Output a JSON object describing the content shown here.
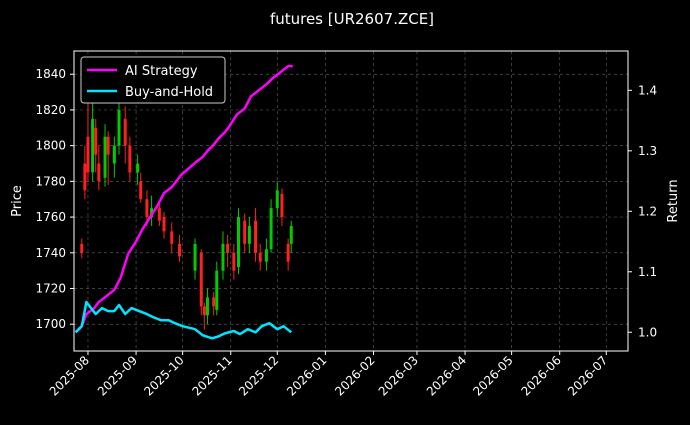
{
  "chart_data": {
    "type": "line",
    "title": "futures [UR2607.ZCE]",
    "xlabel": "",
    "ylabel": "Price",
    "y2label": "Return",
    "ylim": [
      1685,
      1853
    ],
    "y2lim": [
      0.969,
      1.465
    ],
    "xlim": [
      "2025-07-23",
      "2026-07-15"
    ],
    "yticks": [
      1700,
      1720,
      1740,
      1760,
      1780,
      1800,
      1820,
      1840
    ],
    "y2ticks": [
      1.0,
      1.1,
      1.2,
      1.3,
      1.4
    ],
    "xticks": [
      "2025-08",
      "2025-09",
      "2025-10",
      "2025-11",
      "2025-12",
      "2026-01",
      "2026-02",
      "2026-03",
      "2026-04",
      "2026-05",
      "2026-06",
      "2026-07"
    ],
    "grid": true,
    "legend_position": "top-left",
    "colors": {
      "background": "#000000",
      "up": "#00cc00",
      "down": "#ff2020",
      "ai": "#ff00ff",
      "bh": "#00e5ff",
      "text": "#ffffff",
      "grid": "#555555"
    },
    "series": [
      {
        "name": "AI Strategy",
        "axis": "right",
        "x": [
          "2025-07-24",
          "2025-07-28",
          "2025-07-31",
          "2025-08-05",
          "2025-08-08",
          "2025-08-13",
          "2025-08-18",
          "2025-08-22",
          "2025-08-27",
          "2025-09-01",
          "2025-09-05",
          "2025-09-10",
          "2025-09-15",
          "2025-09-19",
          "2025-09-24",
          "2025-09-30",
          "2025-10-09",
          "2025-10-14",
          "2025-10-17",
          "2025-10-21",
          "2025-10-24",
          "2025-10-28",
          "2025-10-31",
          "2025-11-05",
          "2025-11-10",
          "2025-11-14",
          "2025-11-19",
          "2025-11-24",
          "2025-11-28",
          "2025-12-03",
          "2025-12-08",
          "2025-12-11"
        ],
        "values": [
          1.0,
          1.01,
          1.03,
          1.04,
          1.05,
          1.06,
          1.07,
          1.09,
          1.13,
          1.15,
          1.17,
          1.19,
          1.21,
          1.23,
          1.24,
          1.26,
          1.28,
          1.29,
          1.3,
          1.31,
          1.32,
          1.33,
          1.34,
          1.36,
          1.37,
          1.39,
          1.4,
          1.41,
          1.42,
          1.43,
          1.44,
          1.44
        ]
      },
      {
        "name": "Buy-and-Hold",
        "axis": "right",
        "x": [
          "2025-07-24",
          "2025-07-28",
          "2025-07-31",
          "2025-08-03",
          "2025-08-06",
          "2025-08-10",
          "2025-08-14",
          "2025-08-18",
          "2025-08-21",
          "2025-08-25",
          "2025-08-29",
          "2025-09-03",
          "2025-09-08",
          "2025-09-12",
          "2025-09-17",
          "2025-09-22",
          "2025-09-26",
          "2025-10-01",
          "2025-10-09",
          "2025-10-14",
          "2025-10-20",
          "2025-10-24",
          "2025-10-28",
          "2025-11-03",
          "2025-11-07",
          "2025-11-12",
          "2025-11-17",
          "2025-11-21",
          "2025-11-26",
          "2025-12-01",
          "2025-12-05",
          "2025-12-10"
        ],
        "values": [
          1.0,
          1.01,
          1.05,
          1.04,
          1.03,
          1.04,
          1.035,
          1.035,
          1.045,
          1.03,
          1.04,
          1.035,
          1.03,
          1.025,
          1.02,
          1.02,
          1.015,
          1.01,
          1.005,
          0.995,
          0.99,
          0.993,
          0.998,
          1.002,
          0.997,
          1.005,
          1.0,
          1.01,
          1.015,
          1.005,
          1.01,
          1.0
        ]
      }
    ],
    "candles": [
      {
        "x": "2025-07-28",
        "o": 1745,
        "c": 1740,
        "h": 1748,
        "l": 1737
      },
      {
        "x": "2025-07-30",
        "o": 1790,
        "c": 1775,
        "h": 1800,
        "l": 1770
      },
      {
        "x": "2025-08-01",
        "o": 1805,
        "c": 1785,
        "h": 1830,
        "l": 1780
      },
      {
        "x": "2025-08-04",
        "o": 1785,
        "c": 1815,
        "h": 1825,
        "l": 1780
      },
      {
        "x": "2025-08-06",
        "o": 1810,
        "c": 1795,
        "h": 1815,
        "l": 1785
      },
      {
        "x": "2025-08-08",
        "o": 1790,
        "c": 1780,
        "h": 1800,
        "l": 1775
      },
      {
        "x": "2025-08-12",
        "o": 1782,
        "c": 1805,
        "h": 1812,
        "l": 1777
      },
      {
        "x": "2025-08-14",
        "o": 1805,
        "c": 1795,
        "h": 1808,
        "l": 1778
      },
      {
        "x": "2025-08-18",
        "o": 1790,
        "c": 1800,
        "h": 1805,
        "l": 1782
      },
      {
        "x": "2025-08-21",
        "o": 1800,
        "c": 1820,
        "h": 1825,
        "l": 1795
      },
      {
        "x": "2025-08-25",
        "o": 1815,
        "c": 1800,
        "h": 1822,
        "l": 1790
      },
      {
        "x": "2025-08-28",
        "o": 1800,
        "c": 1785,
        "h": 1805,
        "l": 1780
      },
      {
        "x": "2025-09-02",
        "o": 1785,
        "c": 1790,
        "h": 1795,
        "l": 1778
      },
      {
        "x": "2025-09-04",
        "o": 1780,
        "c": 1770,
        "h": 1785,
        "l": 1768
      },
      {
        "x": "2025-09-08",
        "o": 1770,
        "c": 1760,
        "h": 1775,
        "l": 1755
      },
      {
        "x": "2025-09-11",
        "o": 1760,
        "c": 1765,
        "h": 1772,
        "l": 1755
      },
      {
        "x": "2025-09-16",
        "o": 1765,
        "c": 1758,
        "h": 1768,
        "l": 1755
      },
      {
        "x": "2025-09-19",
        "o": 1760,
        "c": 1752,
        "h": 1763,
        "l": 1748
      },
      {
        "x": "2025-09-24",
        "o": 1752,
        "c": 1745,
        "h": 1757,
        "l": 1740
      },
      {
        "x": "2025-09-29",
        "o": 1745,
        "c": 1738,
        "h": 1750,
        "l": 1735
      },
      {
        "x": "2025-10-09",
        "o": 1730,
        "c": 1745,
        "h": 1748,
        "l": 1725
      },
      {
        "x": "2025-10-13",
        "o": 1740,
        "c": 1710,
        "h": 1742,
        "l": 1705
      },
      {
        "x": "2025-10-15",
        "o": 1710,
        "c": 1705,
        "h": 1712,
        "l": 1697
      },
      {
        "x": "2025-10-17",
        "o": 1705,
        "c": 1715,
        "h": 1720,
        "l": 1700
      },
      {
        "x": "2025-10-21",
        "o": 1715,
        "c": 1710,
        "h": 1718,
        "l": 1705
      },
      {
        "x": "2025-10-23",
        "o": 1708,
        "c": 1730,
        "h": 1735,
        "l": 1705
      },
      {
        "x": "2025-10-27",
        "o": 1730,
        "c": 1745,
        "h": 1752,
        "l": 1725
      },
      {
        "x": "2025-10-30",
        "o": 1745,
        "c": 1740,
        "h": 1750,
        "l": 1732
      },
      {
        "x": "2025-11-03",
        "o": 1740,
        "c": 1730,
        "h": 1745,
        "l": 1725
      },
      {
        "x": "2025-11-06",
        "o": 1732,
        "c": 1760,
        "h": 1765,
        "l": 1728
      },
      {
        "x": "2025-11-10",
        "o": 1758,
        "c": 1745,
        "h": 1762,
        "l": 1740
      },
      {
        "x": "2025-11-13",
        "o": 1745,
        "c": 1755,
        "h": 1760,
        "l": 1740
      },
      {
        "x": "2025-11-17",
        "o": 1758,
        "c": 1740,
        "h": 1765,
        "l": 1735
      },
      {
        "x": "2025-11-20",
        "o": 1740,
        "c": 1735,
        "h": 1745,
        "l": 1730
      },
      {
        "x": "2025-11-24",
        "o": 1735,
        "c": 1742,
        "h": 1748,
        "l": 1730
      },
      {
        "x": "2025-11-27",
        "o": 1742,
        "c": 1765,
        "h": 1770,
        "l": 1740
      },
      {
        "x": "2025-12-01",
        "o": 1765,
        "c": 1775,
        "h": 1780,
        "l": 1760
      },
      {
        "x": "2025-12-04",
        "o": 1773,
        "c": 1760,
        "h": 1776,
        "l": 1755
      },
      {
        "x": "2025-12-08",
        "o": 1745,
        "c": 1735,
        "h": 1748,
        "l": 1730
      },
      {
        "x": "2025-12-10",
        "o": 1745,
        "c": 1755,
        "h": 1758,
        "l": 1740
      }
    ]
  }
}
